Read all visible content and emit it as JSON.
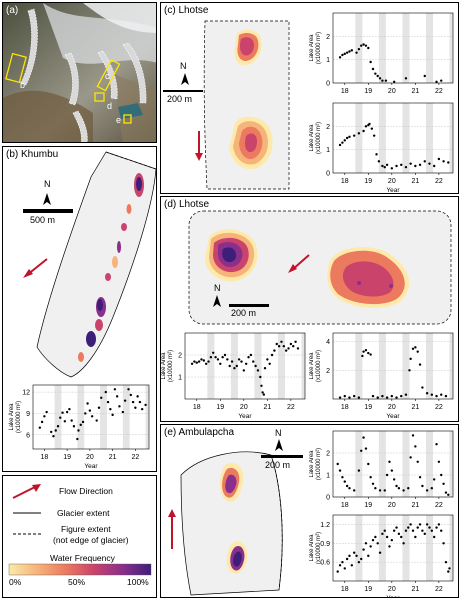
{
  "panels": {
    "a": {
      "label": "(a)",
      "markers": [
        "b",
        "c",
        "d",
        "e"
      ]
    },
    "b": {
      "label": "(b) Khumbu",
      "scale": "500 m",
      "north": "N"
    },
    "c": {
      "label": "(c) Lhotse",
      "scale": "200 m",
      "north": "N"
    },
    "d": {
      "label": "(d) Lhotse",
      "scale": "200 m",
      "north": "N"
    },
    "e": {
      "label": "(e) Ambulapcha",
      "scale": "200 m",
      "north": "N"
    }
  },
  "legend": {
    "flow": "Flow Direction",
    "glacier": "Glacier extent",
    "figure_extent": "Figure extent",
    "figure_extent_note": "(not edge of glacier)",
    "water_freq_title": "Water Frequency",
    "cb_labels": [
      "0%",
      "50%",
      "100%"
    ],
    "colors": [
      "#fde9a9",
      "#f6b37a",
      "#ec7a5e",
      "#c9436b",
      "#8a2f8c",
      "#3d1f7a"
    ]
  },
  "axis_text": {
    "year": "Year",
    "lake_area_1": "Lake Area",
    "lake_area_2": "(x10000 m²)"
  },
  "chart_data": [
    {
      "id": "b",
      "type": "scatter",
      "xlabel": "Year",
      "ylabel": "Lake Area (x10000 m²)",
      "xlim": [
        2017.5,
        2022.6
      ],
      "ylim": [
        4,
        13
      ],
      "xticks": [
        "18",
        "19",
        "20",
        "21",
        "22"
      ],
      "yticks": [
        6,
        9,
        12
      ],
      "grid": "shaded-seasons",
      "x": [
        2017.8,
        2017.9,
        2018.0,
        2018.1,
        2018.3,
        2018.4,
        2018.5,
        2018.6,
        2018.7,
        2018.8,
        2018.9,
        2019.0,
        2019.1,
        2019.2,
        2019.3,
        2019.45,
        2019.5,
        2019.6,
        2019.7,
        2019.8,
        2019.9,
        2020.0,
        2020.1,
        2020.3,
        2020.4,
        2020.5,
        2020.7,
        2020.8,
        2020.9,
        2021.0,
        2021.1,
        2021.2,
        2021.3,
        2021.45,
        2021.55,
        2021.7,
        2021.8,
        2021.9,
        2022.0,
        2022.1,
        2022.2,
        2022.3,
        2022.45
      ],
      "y": [
        7.0,
        7.8,
        8.6,
        9.2,
        6.4,
        5.8,
        6.6,
        7.2,
        8.4,
        9.1,
        7.9,
        9.2,
        9.6,
        8.0,
        7.2,
        5.4,
        6.6,
        7.4,
        7.8,
        9.0,
        10.4,
        9.4,
        8.6,
        8.0,
        9.8,
        11.2,
        12.0,
        10.6,
        9.6,
        8.8,
        12.4,
        11.4,
        10.0,
        9.2,
        10.8,
        12.4,
        11.6,
        10.6,
        9.8,
        11.4,
        10.6,
        9.6,
        10.2
      ]
    },
    {
      "id": "c1",
      "type": "scatter",
      "xlabel": "",
      "ylabel": "Lake Area (x10000 m²)",
      "xlim": [
        2017.5,
        2022.6
      ],
      "ylim": [
        0,
        3
      ],
      "xticks": [
        "18",
        "19",
        "20",
        "21",
        "22"
      ],
      "yticks": [
        0,
        1,
        2
      ],
      "grid": "shaded-seasons",
      "x": [
        2017.8,
        2017.9,
        2018.0,
        2018.1,
        2018.2,
        2018.3,
        2018.5,
        2018.6,
        2018.7,
        2018.8,
        2018.9,
        2019.0,
        2019.1,
        2019.2,
        2019.3,
        2019.4,
        2019.5,
        2019.6,
        2019.75,
        2020.1,
        2020.6,
        2021.4,
        2021.9,
        2022.1
      ],
      "y": [
        1.1,
        1.2,
        1.25,
        1.3,
        1.35,
        1.4,
        1.3,
        1.45,
        1.6,
        1.65,
        1.6,
        1.5,
        0.9,
        0.6,
        0.4,
        0.3,
        0.2,
        0.1,
        0.1,
        0.05,
        0.2,
        0.3,
        0.05,
        0.1
      ]
    },
    {
      "id": "c2",
      "type": "scatter",
      "xlabel": "Year",
      "ylabel": "Lake Area (x10000 m²)",
      "xlim": [
        2017.5,
        2022.6
      ],
      "ylim": [
        0,
        3
      ],
      "xticks": [
        "18",
        "19",
        "20",
        "21",
        "22"
      ],
      "yticks": [
        0,
        1,
        2
      ],
      "grid": "shaded-seasons",
      "x": [
        2017.8,
        2017.9,
        2018.0,
        2018.1,
        2018.2,
        2018.4,
        2018.6,
        2018.8,
        2018.9,
        2019.0,
        2019.05,
        2019.15,
        2019.25,
        2019.35,
        2019.45,
        2019.6,
        2019.7,
        2019.8,
        2020.0,
        2020.2,
        2020.4,
        2020.6,
        2020.8,
        2021.0,
        2021.2,
        2021.4,
        2021.6,
        2021.8,
        2022.0,
        2022.2,
        2022.4
      ],
      "y": [
        1.2,
        1.3,
        1.4,
        1.5,
        1.55,
        1.6,
        1.7,
        1.8,
        2.0,
        2.05,
        2.1,
        1.9,
        1.6,
        0.8,
        0.5,
        0.3,
        0.25,
        0.35,
        0.2,
        0.3,
        0.35,
        0.25,
        0.4,
        0.3,
        0.35,
        0.5,
        0.4,
        0.3,
        0.6,
        0.5,
        0.45
      ]
    },
    {
      "id": "d1",
      "type": "scatter",
      "xlabel": "Year",
      "ylabel": "Lake Area (x10000 m²)",
      "xlim": [
        2017.5,
        2022.6
      ],
      "ylim": [
        0,
        3
      ],
      "xticks": [
        "18",
        "19",
        "20",
        "21",
        "22"
      ],
      "yticks": [
        1,
        2
      ],
      "grid": "shaded-seasons",
      "x": [
        2017.8,
        2017.9,
        2018.0,
        2018.1,
        2018.2,
        2018.3,
        2018.4,
        2018.5,
        2018.6,
        2018.7,
        2018.8,
        2018.9,
        2019.0,
        2019.1,
        2019.2,
        2019.3,
        2019.4,
        2019.5,
        2019.6,
        2019.7,
        2019.8,
        2019.9,
        2020.0,
        2020.1,
        2020.2,
        2020.3,
        2020.4,
        2020.5,
        2020.6,
        2020.7,
        2020.75,
        2020.8,
        2020.85,
        2020.9,
        2021.0,
        2021.1,
        2021.2,
        2021.3,
        2021.4,
        2021.5,
        2021.6,
        2021.7,
        2021.8,
        2021.9,
        2022.0,
        2022.1,
        2022.2,
        2022.3
      ],
      "y": [
        1.6,
        1.7,
        1.65,
        1.7,
        1.8,
        1.75,
        1.6,
        1.7,
        1.9,
        2.1,
        1.9,
        1.8,
        1.6,
        1.9,
        2.0,
        1.8,
        1.5,
        1.7,
        1.4,
        1.5,
        1.8,
        1.7,
        1.3,
        1.6,
        1.9,
        2.0,
        1.7,
        1.5,
        1.3,
        1.0,
        0.6,
        0.3,
        0.2,
        1.4,
        1.8,
        1.6,
        2.0,
        2.2,
        2.5,
        2.4,
        2.6,
        2.4,
        2.2,
        2.3,
        2.5,
        2.4,
        2.6,
        2.3
      ]
    },
    {
      "id": "d2",
      "type": "scatter",
      "xlabel": "Year",
      "ylabel": "Lake Area (x10000 m²)",
      "xlim": [
        2017.5,
        2022.6
      ],
      "ylim": [
        0,
        4.6
      ],
      "xticks": [
        "18",
        "19",
        "20",
        "21",
        "22"
      ],
      "yticks": [
        2,
        4
      ],
      "grid": "shaded-seasons",
      "x": [
        2017.8,
        2018.0,
        2018.2,
        2018.4,
        2018.6,
        2018.75,
        2018.8,
        2018.9,
        2019.0,
        2019.1,
        2019.2,
        2019.4,
        2019.6,
        2019.8,
        2020.0,
        2020.2,
        2020.4,
        2020.6,
        2020.75,
        2020.8,
        2020.9,
        2021.0,
        2021.1,
        2021.2,
        2021.3,
        2021.5,
        2021.7,
        2021.9,
        2022.1,
        2022.3
      ],
      "y": [
        0.1,
        0.2,
        0.1,
        0.2,
        0.1,
        3.0,
        3.3,
        3.4,
        3.2,
        3.1,
        0.2,
        0.1,
        0.2,
        0.1,
        0.2,
        0.1,
        0.2,
        0.3,
        2.0,
        2.8,
        3.5,
        3.6,
        3.3,
        2.4,
        0.8,
        0.4,
        0.3,
        0.2,
        0.3,
        0.2
      ]
    },
    {
      "id": "e1",
      "type": "scatter",
      "xlabel": "",
      "ylabel": "Lake Area (x10000 m²)",
      "xlim": [
        2017.5,
        2022.6
      ],
      "ylim": [
        0,
        3
      ],
      "xticks": [
        "18",
        "19",
        "20",
        "21",
        "22"
      ],
      "yticks": [
        0,
        1,
        2
      ],
      "grid": "shaded-seasons",
      "x": [
        2017.7,
        2017.8,
        2017.9,
        2018.0,
        2018.1,
        2018.2,
        2018.4,
        2018.6,
        2018.7,
        2018.8,
        2018.9,
        2019.0,
        2019.1,
        2019.2,
        2019.3,
        2019.5,
        2019.7,
        2019.8,
        2019.9,
        2020.0,
        2020.1,
        2020.2,
        2020.3,
        2020.5,
        2020.7,
        2020.8,
        2020.9,
        2021.0,
        2021.1,
        2021.2,
        2021.3,
        2021.5,
        2021.7,
        2021.8,
        2021.9,
        2022.0,
        2022.1,
        2022.2,
        2022.3,
        2022.4
      ],
      "y": [
        1.5,
        1.2,
        0.9,
        0.7,
        0.5,
        0.4,
        0.3,
        1.2,
        2.1,
        2.7,
        2.2,
        1.5,
        0.9,
        0.6,
        0.4,
        0.3,
        0.3,
        1.0,
        1.6,
        1.2,
        0.8,
        0.5,
        0.4,
        0.3,
        0.4,
        1.8,
        2.8,
        2.3,
        1.6,
        0.9,
        0.5,
        0.3,
        0.4,
        0.8,
        2.4,
        1.6,
        1.0,
        0.6,
        0.2,
        0.1
      ]
    },
    {
      "id": "e2",
      "type": "scatter",
      "xlabel": "Year",
      "ylabel": "Lake Area (x10000 m²)",
      "xlim": [
        2017.5,
        2022.6
      ],
      "ylim": [
        0.3,
        1.35
      ],
      "xticks": [
        "18",
        "19",
        "20",
        "21",
        "22"
      ],
      "yticks": [
        0.6,
        0.9,
        1.2
      ],
      "grid": "shaded-seasons",
      "x": [
        2017.7,
        2017.8,
        2017.9,
        2018.0,
        2018.1,
        2018.2,
        2018.3,
        2018.4,
        2018.5,
        2018.6,
        2018.7,
        2018.8,
        2018.9,
        2019.0,
        2019.1,
        2019.2,
        2019.3,
        2019.4,
        2019.5,
        2019.6,
        2019.7,
        2019.8,
        2019.9,
        2020.0,
        2020.1,
        2020.2,
        2020.3,
        2020.4,
        2020.5,
        2020.6,
        2020.7,
        2020.8,
        2020.9,
        2021.0,
        2021.1,
        2021.2,
        2021.3,
        2021.4,
        2021.5,
        2021.6,
        2021.7,
        2021.8,
        2021.9,
        2022.0,
        2022.1,
        2022.2,
        2022.3,
        2022.4,
        2022.45
      ],
      "y": [
        0.45,
        0.55,
        0.6,
        0.5,
        0.65,
        0.7,
        0.55,
        0.75,
        0.7,
        0.6,
        0.65,
        0.8,
        0.9,
        0.7,
        0.85,
        0.95,
        1.0,
        0.9,
        0.75,
        1.05,
        1.1,
        1.0,
        0.85,
        0.95,
        1.1,
        1.15,
        1.05,
        1.0,
        0.9,
        1.1,
        1.15,
        1.2,
        1.1,
        1.0,
        1.15,
        1.2,
        1.1,
        1.05,
        1.2,
        1.15,
        1.1,
        1.0,
        1.15,
        1.2,
        1.1,
        0.9,
        0.6,
        0.45,
        0.5
      ]
    }
  ]
}
